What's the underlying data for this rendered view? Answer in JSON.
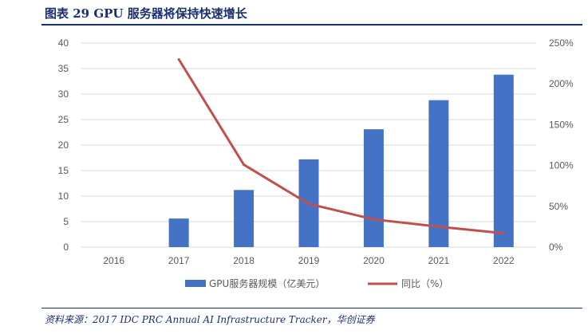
{
  "header": {
    "title": "图表 29   GPU 服务器将保持快速增长"
  },
  "footer": {
    "source": "资料来源：2017 IDC PRC Annual AI Infrastructure Tracker，华创证券"
  },
  "chart_data": {
    "type": "bar",
    "categories": [
      "2016",
      "2017",
      "2018",
      "2019",
      "2020",
      "2021",
      "2022"
    ],
    "series": [
      {
        "name": "GPU服务器规模（亿美元）",
        "type": "bar",
        "axis": "left",
        "color": "#4472c4",
        "values": [
          0,
          5.6,
          11.2,
          17.2,
          23.1,
          28.8,
          33.8
        ]
      },
      {
        "name": "同比（%）",
        "type": "line",
        "axis": "right",
        "color": "#c0504d",
        "values": [
          null,
          230,
          101,
          53,
          34,
          25,
          17
        ]
      }
    ],
    "y_left": {
      "min": 0,
      "max": 40,
      "ticks": [
        "0",
        "5",
        "10",
        "15",
        "20",
        "25",
        "30",
        "35",
        "40"
      ]
    },
    "y_right": {
      "min": 0,
      "max": 250,
      "ticks": [
        "0%",
        "50%",
        "100%",
        "150%",
        "200%",
        "250%"
      ]
    },
    "grid": true,
    "legend": "bottom"
  }
}
